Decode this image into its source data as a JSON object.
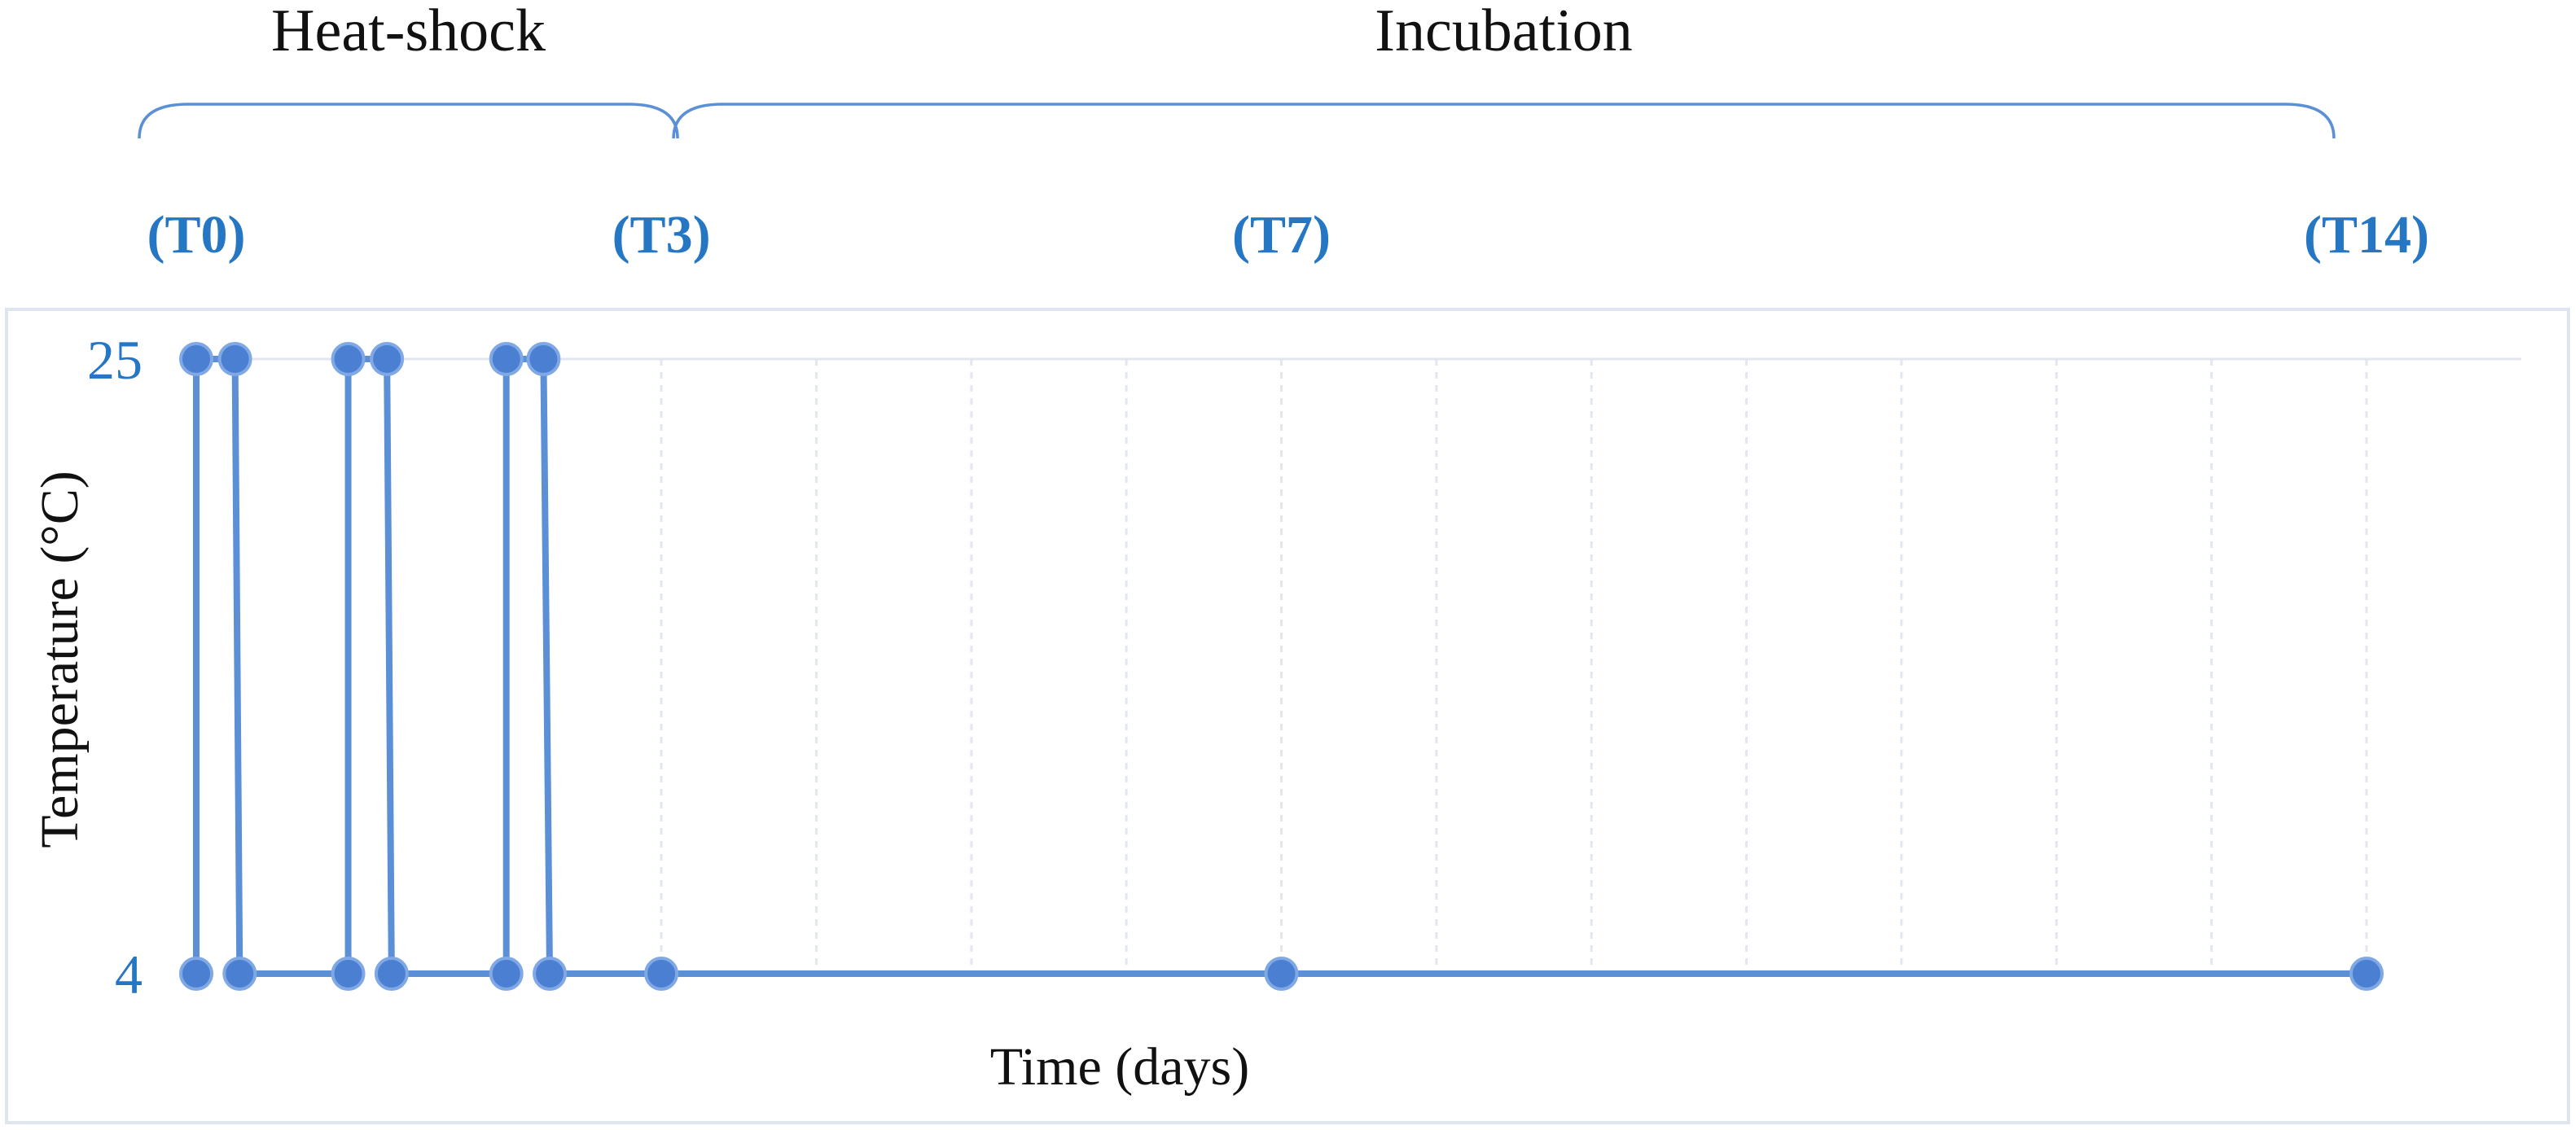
{
  "chart_data": {
    "type": "line",
    "xlabel": "Time (days)",
    "ylabel": "Temperature (°C)",
    "xlim": [
      0,
      14
    ],
    "ylim": [
      4,
      25
    ],
    "yticks": [
      "25",
      "4"
    ],
    "grid": true,
    "gridlines_x": [
      3,
      4,
      5,
      6,
      7,
      8,
      9,
      10,
      11,
      12,
      13,
      14
    ],
    "phases": [
      {
        "label": "Heat-shock",
        "start": 0,
        "end": 3
      },
      {
        "label": "Incubation",
        "start": 3,
        "end": 14
      }
    ],
    "timepoints": [
      {
        "label": "(T0)",
        "x": 0
      },
      {
        "label": "(T3)",
        "x": 3
      },
      {
        "label": "(T7)",
        "x": 7
      },
      {
        "label": "(T14)",
        "x": 14
      }
    ],
    "series": [
      {
        "points": [
          {
            "x": 0.0,
            "y": 4
          },
          {
            "x": 0.0,
            "y": 25
          },
          {
            "x": 0.25,
            "y": 25
          },
          {
            "x": 0.28,
            "y": 4
          },
          {
            "x": 0.98,
            "y": 4
          },
          {
            "x": 0.98,
            "y": 25
          },
          {
            "x": 1.23,
            "y": 25
          },
          {
            "x": 1.26,
            "y": 4
          },
          {
            "x": 2.0,
            "y": 4
          },
          {
            "x": 2.0,
            "y": 25
          },
          {
            "x": 2.24,
            "y": 25
          },
          {
            "x": 2.28,
            "y": 4
          },
          {
            "x": 3.0,
            "y": 4
          },
          {
            "x": 7.0,
            "y": 4
          },
          {
            "x": 14.0,
            "y": 4
          }
        ]
      }
    ],
    "colors": {
      "line": "#5b8fd6",
      "marker": "#4a7fd1",
      "label_blue": "#2677c3",
      "grid": "#e2e6ef",
      "frame": "#dfe5ec"
    }
  }
}
